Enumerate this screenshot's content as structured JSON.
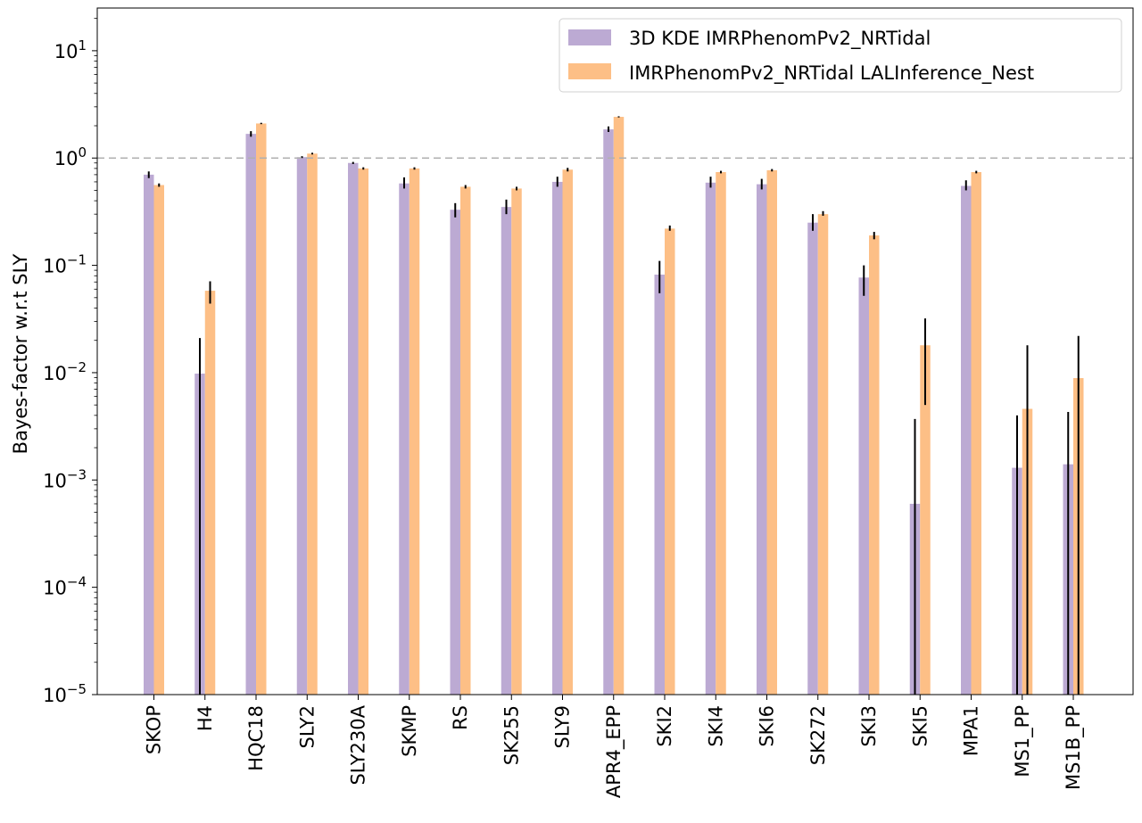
{
  "chart_data": {
    "type": "bar",
    "ylabel": "Bayes-factor w.r.t SLY",
    "xlabel": "",
    "title": "",
    "yscale": "log",
    "ylim": [
      1e-05,
      25
    ],
    "yticks": [
      {
        "value": 1e-05,
        "base": "10",
        "exp": "−5"
      },
      {
        "value": 0.0001,
        "base": "10",
        "exp": "−4"
      },
      {
        "value": 0.001,
        "base": "10",
        "exp": "−3"
      },
      {
        "value": 0.01,
        "base": "10",
        "exp": "−2"
      },
      {
        "value": 0.1,
        "base": "10",
        "exp": "−1"
      },
      {
        "value": 1,
        "base": "10",
        "exp": "0"
      },
      {
        "value": 10,
        "base": "10",
        "exp": "1"
      }
    ],
    "reference_line": 1,
    "grid": false,
    "legend_position": "top-right",
    "categories": [
      "SKOP",
      "H4",
      "HQC18",
      "SLY2",
      "SLY230A",
      "SKMP",
      "RS",
      "SK255",
      "SLY9",
      "APR4_EPP",
      "SKI2",
      "SKI4",
      "SKI6",
      "SK272",
      "SKI3",
      "SKI5",
      "MPA1",
      "MS1_PP",
      "MS1B_PP"
    ],
    "series": [
      {
        "name": "3D KDE IMRPhenomPv2_NRTidal",
        "color": "#bcaad3",
        "values": [
          0.7,
          0.0098,
          1.68,
          1.02,
          0.9,
          0.58,
          0.33,
          0.35,
          0.6,
          1.85,
          0.082,
          0.59,
          0.57,
          0.25,
          0.077,
          0.0006,
          0.55,
          0.0013,
          0.0014
        ],
        "err_low": [
          0.65,
          1e-05,
          1.58,
          1.0,
          0.88,
          0.52,
          0.28,
          0.3,
          0.54,
          1.75,
          0.055,
          0.53,
          0.51,
          0.21,
          0.052,
          1e-05,
          0.5,
          1e-05,
          1e-05
        ],
        "err_high": [
          0.75,
          0.021,
          1.78,
          1.04,
          0.92,
          0.66,
          0.38,
          0.41,
          0.67,
          1.97,
          0.11,
          0.67,
          0.64,
          0.3,
          0.1,
          0.0037,
          0.62,
          0.004,
          0.0043
        ]
      },
      {
        "name": "IMRPhenomPv2_NRTidal LALInference_Nest",
        "color": "#fdbf86",
        "values": [
          0.56,
          0.058,
          2.1,
          1.1,
          0.8,
          0.8,
          0.54,
          0.52,
          0.78,
          2.42,
          0.22,
          0.74,
          0.77,
          0.3,
          0.19,
          0.018,
          0.74,
          0.0046,
          0.0089
        ],
        "err_low": [
          0.54,
          0.044,
          2.07,
          1.08,
          0.78,
          0.78,
          0.52,
          0.5,
          0.75,
          2.39,
          0.21,
          0.72,
          0.75,
          0.29,
          0.175,
          0.005,
          0.72,
          1e-05,
          1e-05
        ],
        "err_high": [
          0.58,
          0.071,
          2.13,
          1.12,
          0.82,
          0.82,
          0.56,
          0.54,
          0.81,
          2.45,
          0.235,
          0.76,
          0.79,
          0.32,
          0.205,
          0.032,
          0.76,
          0.018,
          0.022
        ]
      }
    ]
  }
}
